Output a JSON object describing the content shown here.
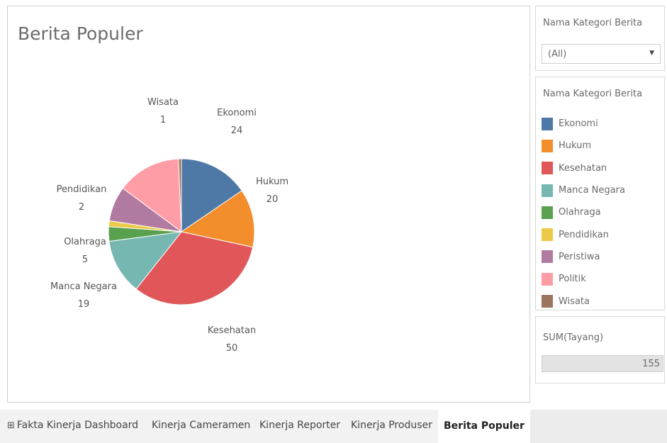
{
  "dashboard": {
    "title": "Berita Populer"
  },
  "chart_data": {
    "type": "pie",
    "title": "Berita Populer",
    "slices": [
      {
        "label": "Ekonomi",
        "value": 24,
        "color": "#4e79a7",
        "show_label": true
      },
      {
        "label": "Hukum",
        "value": 20,
        "color": "#f28e2b",
        "show_label": true
      },
      {
        "label": "Kesehatan",
        "value": 50,
        "color": "#e15759",
        "show_label": true
      },
      {
        "label": "Manca Negara",
        "value": 19,
        "color": "#76b7b2",
        "show_label": true
      },
      {
        "label": "Olahraga",
        "value": 5,
        "color": "#59a14f",
        "show_label": true
      },
      {
        "label": "Pendidikan",
        "value": 2,
        "color": "#edc948",
        "show_label": true
      },
      {
        "label": "Peristiwa",
        "value": 12,
        "color": "#b07aa1",
        "show_label": false
      },
      {
        "label": "Politik",
        "value": 22,
        "color": "#ff9da7",
        "show_label": false
      },
      {
        "label": "Wisata",
        "value": 1,
        "color": "#9c755f",
        "show_label": true
      }
    ]
  },
  "filter": {
    "title": "Nama Kategori Berita",
    "selected": "(All)"
  },
  "legend": {
    "title": "Nama Kategori Berita",
    "items": [
      {
        "label": "Ekonomi",
        "color": "#4e79a7"
      },
      {
        "label": "Hukum",
        "color": "#f28e2b"
      },
      {
        "label": "Kesehatan",
        "color": "#e15759"
      },
      {
        "label": "Manca Negara",
        "color": "#76b7b2"
      },
      {
        "label": "Olahraga",
        "color": "#59a14f"
      },
      {
        "label": "Pendidikan",
        "color": "#edc948"
      },
      {
        "label": "Peristiwa",
        "color": "#b07aa1"
      },
      {
        "label": "Politik",
        "color": "#ff9da7"
      },
      {
        "label": "Wisata",
        "color": "#9c755f"
      }
    ]
  },
  "size_legend": {
    "title": "SUM(Tayang)",
    "value": "155"
  },
  "tabs": [
    {
      "label": "Fakta Kinerja Dashboard",
      "icon": "grid-icon",
      "active": false
    },
    {
      "label": "Kinerja Cameramen",
      "active": false
    },
    {
      "label": "Kinerja Reporter",
      "active": false
    },
    {
      "label": "Kinerja Produser",
      "active": false
    },
    {
      "label": "Berita Populer",
      "active": true
    }
  ]
}
